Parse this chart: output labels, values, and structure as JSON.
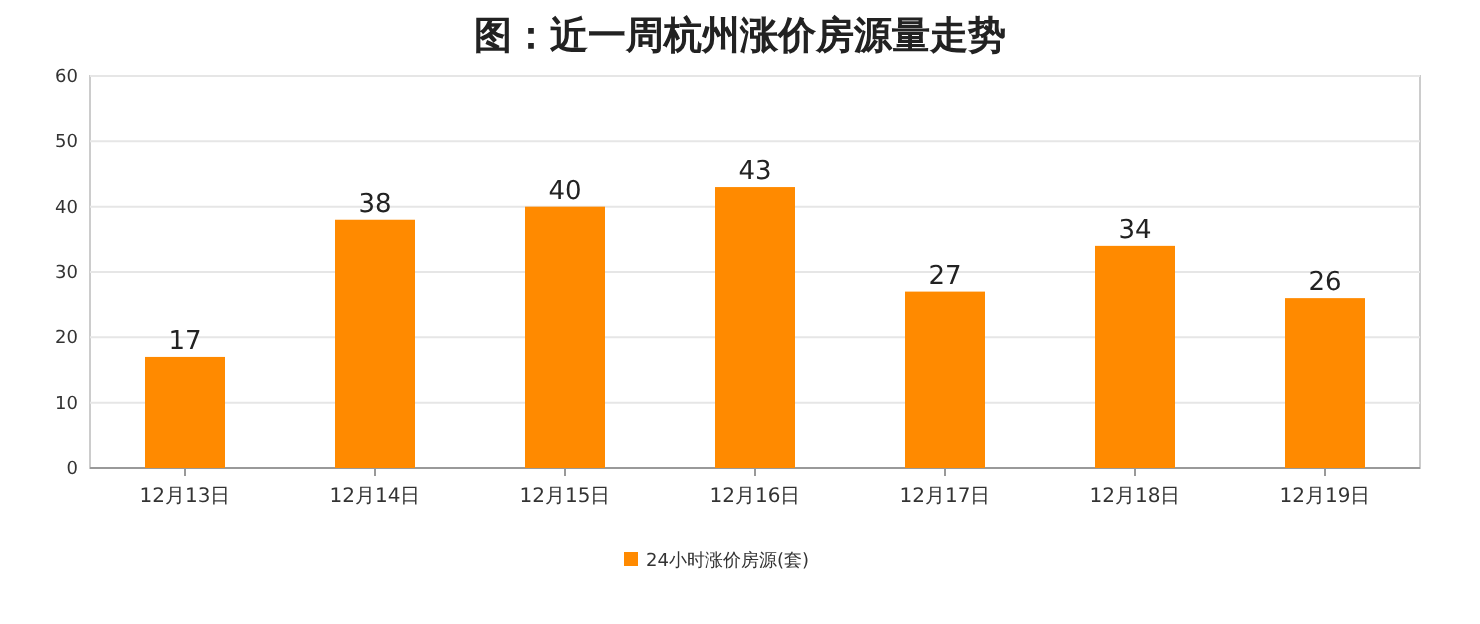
{
  "chart_data": {
    "type": "bar",
    "title": "图：近一周杭州涨价房源量走势",
    "categories": [
      "12月13日",
      "12月14日",
      "12月15日",
      "12月16日",
      "12月17日",
      "12月18日",
      "12月19日"
    ],
    "series": [
      {
        "name": "24小时涨价房源(套)",
        "color": "#ff8a00",
        "values": [
          17,
          38,
          40,
          43,
          27,
          34,
          26
        ]
      }
    ],
    "ylim": [
      0,
      60
    ],
    "yticks": [
      0,
      10,
      20,
      30,
      40,
      50,
      60
    ],
    "grid": "y",
    "legend": "bottom",
    "data_labels": true
  }
}
